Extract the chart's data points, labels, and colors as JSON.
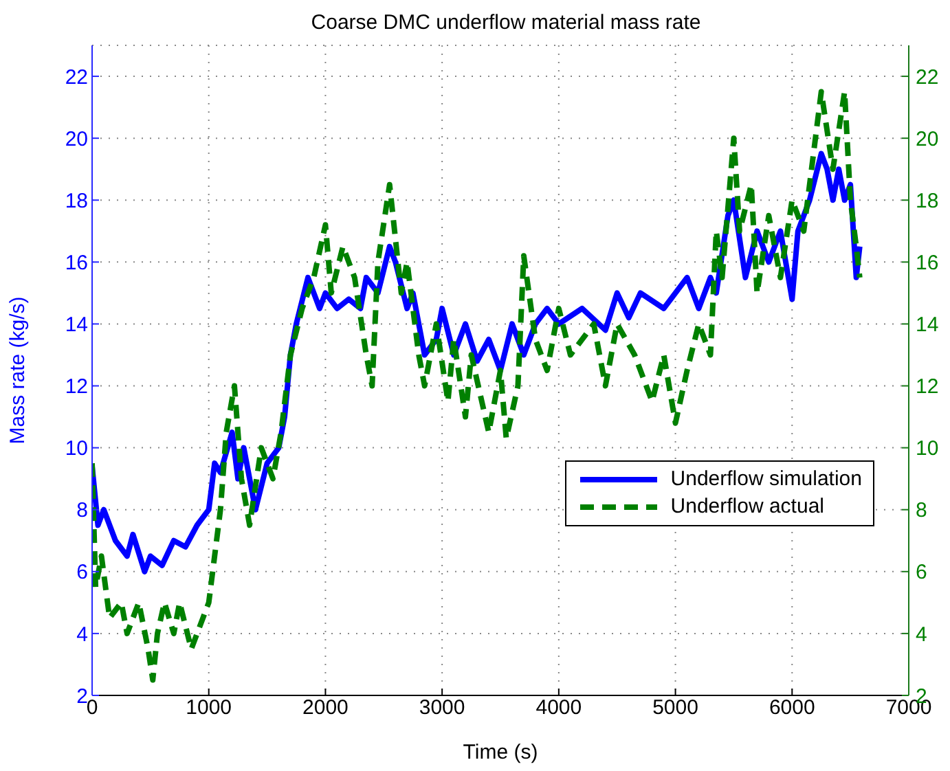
{
  "chart_data": {
    "type": "line",
    "title": "Coarse DMC underflow material mass rate",
    "xlabel": "Time (s)",
    "ylabel": "Mass rate (kg/s)",
    "xlim": [
      0,
      7000
    ],
    "xticks": [
      0,
      1000,
      2000,
      3000,
      4000,
      5000,
      6000,
      7000
    ],
    "ylim": [
      2,
      23
    ],
    "yticks": [
      2,
      4,
      6,
      8,
      10,
      12,
      14,
      16,
      18,
      20,
      22
    ],
    "y2lim": [
      2,
      23
    ],
    "y2ticks": [
      2,
      4,
      6,
      8,
      10,
      12,
      14,
      16,
      18,
      20,
      22
    ],
    "grid": true,
    "legend": "right",
    "marker": "none",
    "series": [
      {
        "name": "Underflow simulation",
        "color": "#0000ff",
        "line_style": "solid",
        "x": [
          0,
          50,
          100,
          200,
          300,
          350,
          450,
          500,
          600,
          700,
          800,
          900,
          1000,
          1050,
          1100,
          1200,
          1250,
          1300,
          1400,
          1500,
          1600,
          1650,
          1700,
          1750,
          1850,
          1950,
          2000,
          2100,
          2200,
          2300,
          2350,
          2450,
          2550,
          2600,
          2700,
          2750,
          2850,
          2950,
          3000,
          3100,
          3200,
          3300,
          3400,
          3500,
          3600,
          3700,
          3800,
          3900,
          4000,
          4200,
          4400,
          4500,
          4600,
          4700,
          4900,
          5000,
          5100,
          5200,
          5300,
          5350,
          5450,
          5500,
          5600,
          5700,
          5800,
          5900,
          6000,
          6050,
          6150,
          6250,
          6300,
          6350,
          6400,
          6450,
          6500,
          6550,
          6580
        ],
        "values": [
          9.4,
          7.5,
          8,
          7,
          6.5,
          7.2,
          6,
          6.5,
          6.2,
          7,
          6.8,
          7.5,
          8,
          9.5,
          9.2,
          10.5,
          9,
          10,
          8,
          9.5,
          10,
          11,
          13,
          14,
          15.5,
          14.5,
          15,
          14.5,
          14.8,
          14.5,
          15.5,
          15,
          16.5,
          16,
          14.5,
          15,
          13,
          13.5,
          14.5,
          13,
          14,
          12.8,
          13.5,
          12.5,
          14,
          13,
          14,
          14.5,
          14,
          14.5,
          13.8,
          15,
          14.2,
          15,
          14.5,
          15,
          15.5,
          14.5,
          15.5,
          15,
          17.5,
          18,
          15.5,
          17,
          16,
          17,
          14.8,
          17,
          18,
          19.5,
          19,
          18,
          19,
          18,
          18.5,
          15.5,
          16.5
        ]
      },
      {
        "name": "Underflow actual",
        "color": "#008000",
        "line_style": "dashed",
        "axis": "y2",
        "x": [
          0,
          30,
          80,
          150,
          250,
          300,
          400,
          480,
          520,
          560,
          620,
          700,
          750,
          850,
          950,
          1000,
          1050,
          1100,
          1150,
          1220,
          1280,
          1350,
          1450,
          1550,
          1620,
          1700,
          1800,
          1900,
          2000,
          2050,
          2150,
          2250,
          2350,
          2400,
          2450,
          2550,
          2650,
          2700,
          2800,
          2850,
          2950,
          3050,
          3100,
          3200,
          3250,
          3400,
          3500,
          3550,
          3650,
          3700,
          3800,
          3900,
          4000,
          4100,
          4300,
          4400,
          4500,
          4650,
          4800,
          4900,
          5000,
          5100,
          5200,
          5300,
          5350,
          5400,
          5500,
          5550,
          5650,
          5700,
          5800,
          5900,
          6000,
          6100,
          6200,
          6250,
          6350,
          6450,
          6500,
          6550,
          6580
        ],
        "values": [
          9.5,
          5.5,
          6.5,
          4.5,
          5,
          4,
          5,
          3.5,
          2.5,
          4,
          5,
          4,
          5,
          3.5,
          4.5,
          5,
          6.5,
          8,
          10.5,
          12,
          9,
          7.5,
          10,
          9,
          10.5,
          13,
          14.5,
          15.5,
          17.2,
          15,
          16.5,
          15.5,
          13,
          12,
          16,
          18.5,
          15,
          16,
          13,
          12,
          14,
          11.5,
          13.5,
          11,
          13,
          10.5,
          12.5,
          10.3,
          12,
          16.2,
          13.5,
          12.5,
          14.5,
          13,
          14,
          12,
          14,
          13,
          11.5,
          13,
          10.8,
          12.5,
          14,
          13,
          17,
          15.5,
          20,
          17,
          18.5,
          15,
          17.5,
          15.5,
          18,
          17,
          20,
          21.5,
          19,
          21.5,
          18,
          16.5,
          15.5
        ]
      }
    ]
  }
}
